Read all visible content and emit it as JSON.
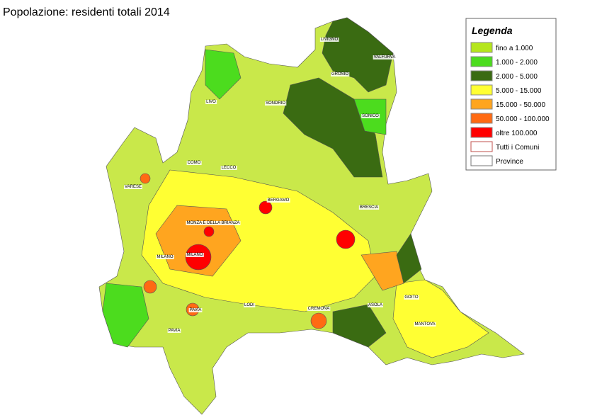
{
  "title": "Popolazione: residenti totali 2014",
  "legend": {
    "title": "Legenda",
    "items": [
      {
        "label": "fino a 1.000",
        "color": "#b5e61d"
      },
      {
        "label": "1.000 - 2.000",
        "color": "#4cdc1e"
      },
      {
        "label": "2.000 - 5.000",
        "color": "#3a6b12"
      },
      {
        "label": "5.000 - 15.000",
        "color": "#ffff33"
      },
      {
        "label": "15.000 - 50.000",
        "color": "#ffa51f"
      },
      {
        "label": "50.000 - 100.000",
        "color": "#ff6a13"
      },
      {
        "label": "oltre 100.000",
        "color": "#ff0000"
      },
      {
        "label": "Tutti i Comuni",
        "color": "#ffffff",
        "border": "#c0504d"
      },
      {
        "label": "Province",
        "color": "#ffffff",
        "border": "#777777"
      }
    ]
  },
  "places": [
    "LIVIGNO",
    "VALFURVA",
    "GROSIO",
    "SONDRIO",
    "LIVO",
    "SONICO",
    "COMO",
    "LECCO",
    "VARESE",
    "BERGAMO",
    "BRESCIA",
    "MONZA E DELLA BRIANZA",
    "MILANO",
    "MILANO",
    "LODI",
    "CREMONA",
    "ASOLA",
    "GOITO",
    "PAVIA",
    "PAVIA",
    "MANTOVA"
  ]
}
